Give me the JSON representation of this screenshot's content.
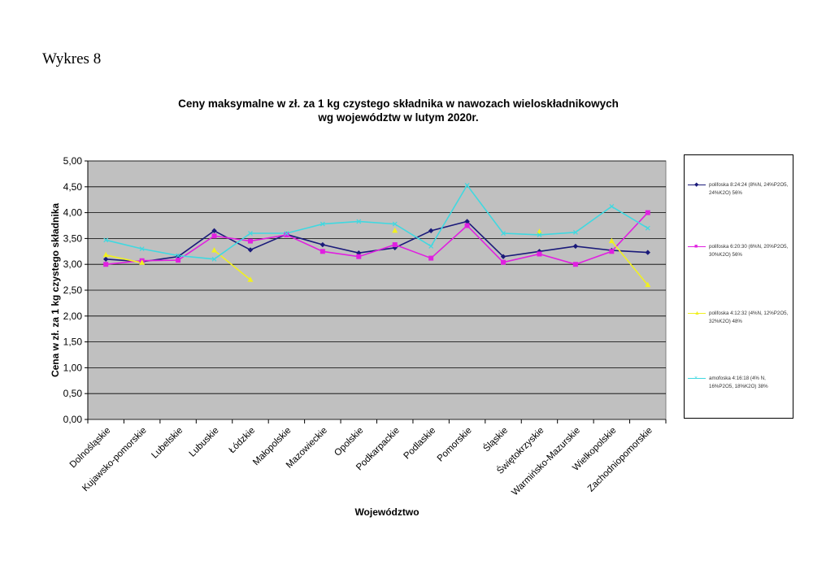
{
  "heading": "Wykres 8",
  "chart_data": {
    "type": "line",
    "title_line1": "Ceny maksymalne  w zł. za 1 kg czystego składnika w nawozach wieloskładnikowych",
    "title_line2": "wg województw w lutym  2020r.",
    "xlabel": "Województwo",
    "ylabel": "Cena w zł. za 1 kg czystego składnika",
    "ylim": [
      0,
      5
    ],
    "y_ticks": [
      "0,00",
      "0,50",
      "1,00",
      "1,50",
      "2,00",
      "2,50",
      "3,00",
      "3,50",
      "4,00",
      "4,50",
      "5,00"
    ],
    "plot_background": "#c0c0c0",
    "grid": true,
    "legend_position": "right",
    "categories": [
      "Dolnośląskie",
      "Kujawsko-pomorskie",
      "Lubelskie",
      "Lubuskie",
      "Łódzkie",
      "Małopolskie",
      "Mazowieckie",
      "Opolskie",
      "Podkarpackie",
      "Podlaskie",
      "Pomorskie",
      "Śląskie",
      "Świętokrzyskie",
      "Warmińsko-Mazurskie",
      "Wielkopolskie",
      "Zachodniopomorskie"
    ],
    "series": [
      {
        "name": "polifoska 8:24:24 (8%N, 24%P2O5, 24%K2O) 56%",
        "color": "#1a1a7a",
        "marker": "◆",
        "values": [
          3.1,
          3.05,
          3.15,
          3.65,
          3.28,
          3.58,
          3.38,
          3.22,
          3.32,
          3.65,
          3.83,
          3.15,
          3.25,
          3.35,
          3.27,
          3.23
        ]
      },
      {
        "name": "polifoska 6:20:30 (6%N, 20%P2O5, 30%K2O) 56%",
        "color": "#e020e0",
        "marker": "■",
        "values": [
          3.0,
          3.07,
          3.08,
          3.55,
          3.45,
          3.57,
          3.25,
          3.15,
          3.38,
          3.12,
          3.75,
          3.04,
          3.2,
          3.0,
          3.25,
          4.0
        ]
      },
      {
        "name": "polifoska 4:12:32 (4%N, 12%P2O5, 32%K2O) 48%",
        "color": "#f0f020",
        "marker": "▲",
        "values": [
          3.18,
          3.03,
          null,
          3.27,
          2.7,
          null,
          null,
          null,
          3.65,
          null,
          null,
          null,
          3.63,
          null,
          3.45,
          2.6
        ]
      },
      {
        "name": "amofoska 4:16:18 (4% N, 16%P2O5, 18%K2O) 38%",
        "color": "#40d8e0",
        "marker": "×",
        "values": [
          3.47,
          3.3,
          3.17,
          3.1,
          3.6,
          3.6,
          3.78,
          3.83,
          3.78,
          3.35,
          4.53,
          3.6,
          3.57,
          3.62,
          4.12,
          3.7
        ]
      }
    ]
  }
}
